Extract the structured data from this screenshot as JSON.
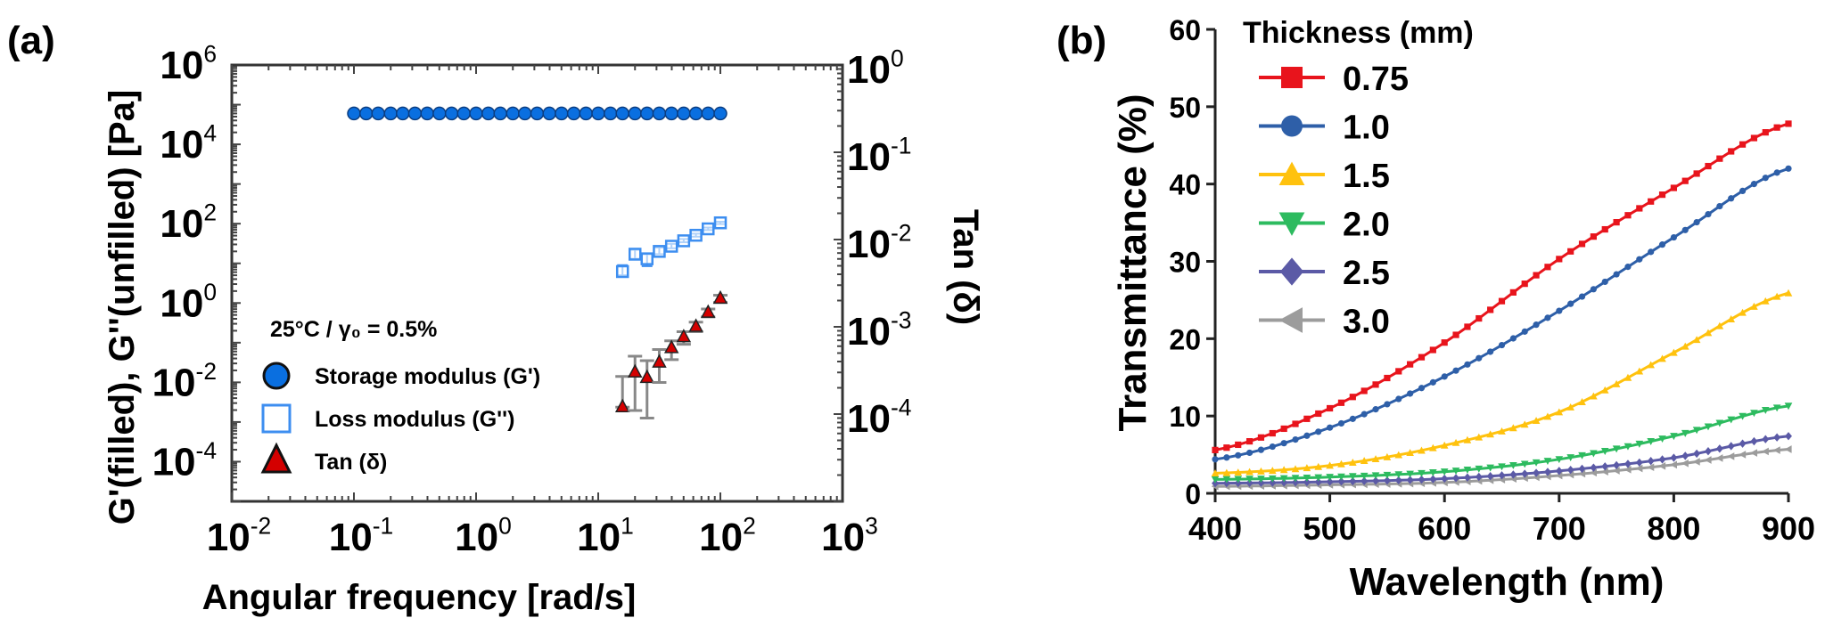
{
  "chart_data": [
    {
      "panel_label": "(a)",
      "type": "scatter",
      "title": "",
      "xlabel": "Angular frequency [rad/s]",
      "ylabel": "G'(filled), G''(unfilled) [Pa]",
      "y2label": "Tan (δ)",
      "xscale": "log",
      "yscale": "log",
      "y2scale": "log",
      "xlim": [
        0.01,
        1000
      ],
      "ylim": [
        1e-05,
        1000000
      ],
      "y2lim": [
        1e-05,
        1
      ],
      "x_ticks": [
        {
          "base": "10",
          "exp": "-2",
          "value": 0.01
        },
        {
          "base": "10",
          "exp": "-1",
          "value": 0.1
        },
        {
          "base": "10",
          "exp": "0",
          "value": 1
        },
        {
          "base": "10",
          "exp": "1",
          "value": 10
        },
        {
          "base": "10",
          "exp": "2",
          "value": 100
        },
        {
          "base": "10",
          "exp": "3",
          "value": 1000
        }
      ],
      "y_ticks": [
        {
          "base": "10",
          "exp": "6",
          "value": 1000000
        },
        {
          "base": "10",
          "exp": "4",
          "value": 10000
        },
        {
          "base": "10",
          "exp": "2",
          "value": 100
        },
        {
          "base": "10",
          "exp": "0",
          "value": 1
        },
        {
          "base": "10",
          "exp": "-2",
          "value": 0.01
        },
        {
          "base": "10",
          "exp": "-4",
          "value": 0.0001
        }
      ],
      "y2_ticks": [
        {
          "base": "10",
          "exp": "0",
          "value": 1
        },
        {
          "base": "10",
          "exp": "-1",
          "value": 0.1
        },
        {
          "base": "10",
          "exp": "-2",
          "value": 0.01
        },
        {
          "base": "10",
          "exp": "-3",
          "value": 0.001
        },
        {
          "base": "10",
          "exp": "-4",
          "value": 0.0001
        }
      ],
      "legend_position": "bottom-left",
      "legend_note": "25°C / γ₀ = 0.5%",
      "series": [
        {
          "name": "Storage modulus (G')",
          "marker": "circle-filled",
          "color": "#0a6fe0",
          "axis": "left",
          "x": [
            0.1,
            0.126,
            0.158,
            0.2,
            0.251,
            0.316,
            0.398,
            0.501,
            0.631,
            0.794,
            1,
            1.26,
            1.58,
            2,
            2.51,
            3.16,
            3.98,
            5.01,
            6.31,
            7.94,
            10,
            12.6,
            15.8,
            20,
            25.1,
            31.6,
            39.8,
            50.1,
            63.1,
            79.4,
            100
          ],
          "y": [
            60000,
            60000,
            60000,
            60000,
            60000,
            60000,
            60000,
            60000,
            60000,
            60000,
            60000,
            60000,
            60000,
            60000,
            60000,
            60000,
            60000,
            60000,
            60000,
            60000,
            60000,
            60000,
            60000,
            60000,
            60000,
            60000,
            60000,
            60000,
            60000,
            60000,
            60000
          ]
        },
        {
          "name": "Loss modulus (G'')",
          "marker": "square-open",
          "color": "#3d8ef0",
          "axis": "left",
          "x": [
            15.8,
            20,
            25.1,
            31.6,
            39.8,
            50.1,
            63.1,
            79.4,
            100
          ],
          "y": [
            6.2,
            17,
            13,
            20,
            27,
            37,
            51,
            74,
            105
          ],
          "err_low": [
            5.0,
            13,
            8.5,
            17,
            24,
            34,
            47,
            69,
            98
          ],
          "err_high": [
            9.0,
            22,
            17,
            25,
            31,
            41,
            56,
            80,
            112
          ]
        },
        {
          "name": "Tan (δ)",
          "marker": "triangle-filled",
          "color": "#d40000",
          "axis": "right",
          "x": [
            15.8,
            20,
            25.1,
            31.6,
            39.8,
            50.1,
            63.1,
            79.4,
            100
          ],
          "y": [
            0.00012,
            0.0003,
            0.00026,
            0.00039,
            0.00057,
            0.00076,
            0.001,
            0.00145,
            0.0021
          ],
          "err_low": [
            0.00012,
            0.00011,
            9e-05,
            0.00023,
            0.00042,
            0.00063,
            0.00088,
            0.0013,
            0.0019
          ],
          "err_high": [
            0.00027,
            0.00046,
            0.00041,
            0.00055,
            0.00069,
            0.00088,
            0.00113,
            0.0016,
            0.0023
          ]
        }
      ]
    },
    {
      "panel_label": "(b)",
      "type": "line",
      "title": "",
      "xlabel": "Wavelength (nm)",
      "ylabel": "Transmittance (%)",
      "xlim": [
        400,
        900
      ],
      "ylim": [
        0,
        60
      ],
      "x_ticks": [
        400,
        500,
        600,
        700,
        800,
        900
      ],
      "y_ticks": [
        0,
        10,
        20,
        30,
        40,
        50,
        60
      ],
      "legend_title": "Thickness (mm)",
      "legend_position": "top-left",
      "x": [
        400,
        500,
        600,
        700,
        800,
        900
      ],
      "series": [
        {
          "name": "0.75",
          "marker": "square",
          "color": "#e8141c",
          "values": [
            5.6,
            11.0,
            19.5,
            30.3,
            39.5,
            47.8
          ]
        },
        {
          "name": "1.0",
          "marker": "circle",
          "color": "#2e5fa8",
          "values": [
            4.4,
            8.5,
            15.1,
            23.6,
            33.1,
            42.0
          ]
        },
        {
          "name": "1.5",
          "marker": "triangle-up",
          "color": "#ffc20e",
          "values": [
            2.6,
            3.6,
            6.2,
            10.5,
            18.2,
            25.9
          ]
        },
        {
          "name": "2.0",
          "marker": "triangle-down",
          "color": "#2dbb5f",
          "values": [
            1.8,
            2.1,
            2.8,
            4.4,
            7.4,
            11.3
          ]
        },
        {
          "name": "2.5",
          "marker": "diamond",
          "color": "#5b5aa6",
          "values": [
            1.3,
            1.5,
            1.9,
            2.9,
            4.6,
            7.4
          ]
        },
        {
          "name": "3.0",
          "marker": "triangle-left",
          "color": "#9c9c9c",
          "values": [
            0.9,
            1.1,
            1.4,
            2.3,
            3.7,
            5.7
          ]
        }
      ]
    }
  ]
}
